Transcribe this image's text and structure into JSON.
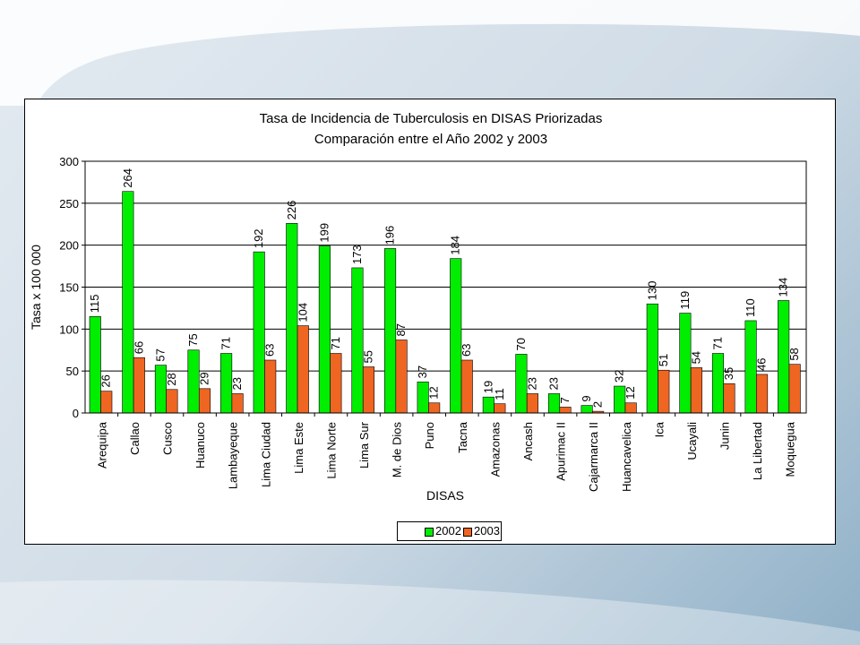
{
  "chart_data": {
    "type": "bar",
    "title": "Tasa de Incidencia de Tuberculosis en DISAS Priorizadas",
    "subtitle": "Comparación entre el Año 2002 y 2003",
    "xlabel": "DISAS",
    "ylabel": "Tasa x 100 000",
    "ylim": [
      0,
      300
    ],
    "yticks": [
      "0",
      "50",
      "100",
      "150",
      "200",
      "250",
      "300"
    ],
    "grid": true,
    "legend_position": "bottom",
    "categories": [
      "Arequipa",
      "Callao",
      "Cusco",
      "Huanuco",
      "Lambayeque",
      "Lima Ciudad",
      "Lima Este",
      "Lima Norte",
      "Lima Sur",
      "M. de Dios",
      "Puno",
      "Tacna",
      "Amazonas",
      "Ancash",
      "Apurimac II",
      "Cajarmarca II",
      "Huancavelica",
      "Ica",
      "Ucayali",
      "Junin",
      "La Libertad",
      "Moquegua"
    ],
    "series": [
      {
        "name": "2002",
        "color": "#00ee00",
        "values": [
          115,
          264,
          57,
          75,
          71,
          192,
          226,
          199,
          173,
          196,
          37,
          184,
          19,
          70,
          23,
          9,
          32,
          130,
          119,
          71,
          110,
          134
        ]
      },
      {
        "name": "2003",
        "color": "#ee6622",
        "values": [
          26,
          66,
          28,
          29,
          23,
          63,
          104,
          71,
          55,
          87,
          12,
          63,
          11,
          23,
          7,
          2,
          12,
          51,
          54,
          35,
          46,
          58
        ]
      }
    ]
  }
}
